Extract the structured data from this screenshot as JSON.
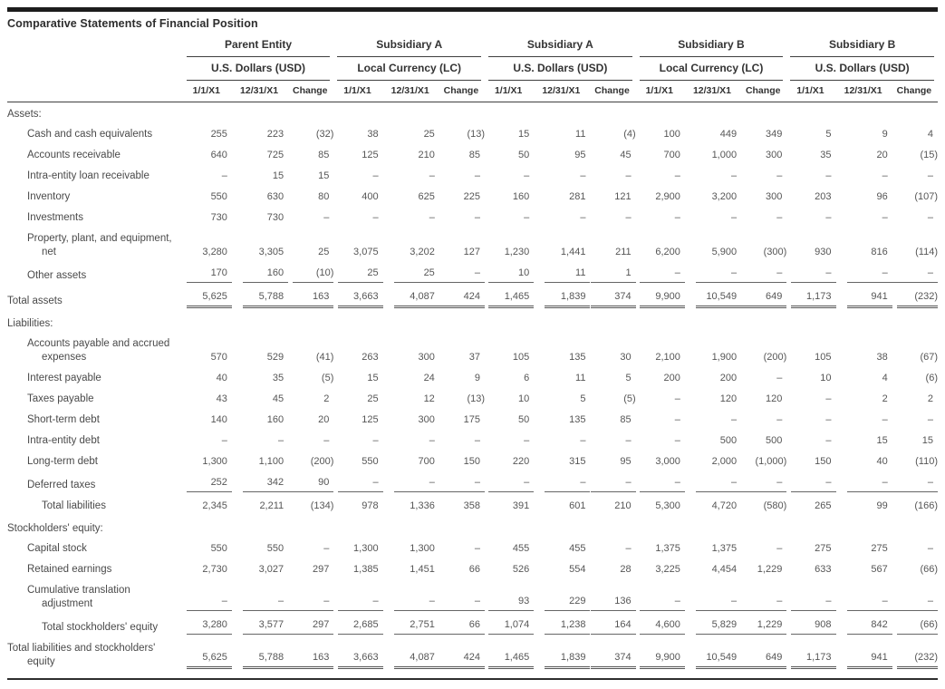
{
  "title": "Comparative Statements of Financial Position",
  "table": {
    "groups": [
      {
        "entity": "Parent Entity",
        "currency": "U.S. Dollars (USD)"
      },
      {
        "entity": "Subsidiary A",
        "currency": "Local Currency (LC)"
      },
      {
        "entity": "Subsidiary A",
        "currency": "U.S. Dollars (USD)"
      },
      {
        "entity": "Subsidiary B",
        "currency": "Local Currency (LC)"
      },
      {
        "entity": "Subsidiary B",
        "currency": "U.S. Dollars (USD)"
      }
    ],
    "col_headers": [
      "1/1/X1",
      "12/31/X1",
      "Change"
    ],
    "rows": [
      {
        "label": "Assets:",
        "type": "section",
        "indent": 0
      },
      {
        "label": "Cash and cash equivalents",
        "type": "item",
        "indent": 1,
        "underline": "none",
        "values": [
          "255",
          "223",
          "(32)",
          "38",
          "25",
          "(13)",
          "15",
          "11",
          "(4)",
          "100",
          "449",
          "349",
          "5",
          "9",
          "4"
        ]
      },
      {
        "label": "Accounts receivable",
        "type": "item",
        "indent": 1,
        "underline": "none",
        "values": [
          "640",
          "725",
          "85",
          "125",
          "210",
          "85",
          "50",
          "95",
          "45",
          "700",
          "1,000",
          "300",
          "35",
          "20",
          "(15)"
        ]
      },
      {
        "label": "Intra-entity loan receivable",
        "type": "item",
        "indent": 1,
        "underline": "none",
        "values": [
          "–",
          "15",
          "15",
          "–",
          "–",
          "–",
          "–",
          "–",
          "–",
          "–",
          "–",
          "–",
          "–",
          "–",
          "–"
        ]
      },
      {
        "label": "Inventory",
        "type": "item",
        "indent": 1,
        "underline": "none",
        "values": [
          "550",
          "630",
          "80",
          "400",
          "625",
          "225",
          "160",
          "281",
          "121",
          "2,900",
          "3,200",
          "300",
          "203",
          "96",
          "(107)"
        ]
      },
      {
        "label": "Investments",
        "type": "item",
        "indent": 1,
        "underline": "none",
        "values": [
          "730",
          "730",
          "–",
          "–",
          "–",
          "–",
          "–",
          "–",
          "–",
          "–",
          "–",
          "–",
          "–",
          "–",
          "–"
        ]
      },
      {
        "label": "Property, plant, and equipment,",
        "label2": "net",
        "type": "item",
        "indent": 1,
        "indent2": 2,
        "underline": "none",
        "values": [
          "3,280",
          "3,305",
          "25",
          "3,075",
          "3,202",
          "127",
          "1,230",
          "1,441",
          "211",
          "6,200",
          "5,900",
          "(300)",
          "930",
          "816",
          "(114)"
        ]
      },
      {
        "label": "Other assets",
        "type": "item",
        "indent": 1,
        "underline": "single",
        "values": [
          "170",
          "160",
          "(10)",
          "25",
          "25",
          "–",
          "10",
          "11",
          "1",
          "–",
          "–",
          "–",
          "–",
          "–",
          "–"
        ]
      },
      {
        "label": "Total assets",
        "type": "total",
        "indent": 0,
        "underline": "double",
        "values": [
          "5,625",
          "5,788",
          "163",
          "3,663",
          "4,087",
          "424",
          "1,465",
          "1,839",
          "374",
          "9,900",
          "10,549",
          "649",
          "1,173",
          "941",
          "(232)"
        ]
      },
      {
        "label": "Liabilities:",
        "type": "section",
        "indent": 0
      },
      {
        "label": "Accounts payable and accrued",
        "label2": "expenses",
        "type": "item",
        "indent": 1,
        "indent2": 2,
        "underline": "none",
        "values": [
          "570",
          "529",
          "(41)",
          "263",
          "300",
          "37",
          "105",
          "135",
          "30",
          "2,100",
          "1,900",
          "(200)",
          "105",
          "38",
          "(67)"
        ]
      },
      {
        "label": "Interest payable",
        "type": "item",
        "indent": 1,
        "underline": "none",
        "values": [
          "40",
          "35",
          "(5)",
          "15",
          "24",
          "9",
          "6",
          "11",
          "5",
          "200",
          "200",
          "–",
          "10",
          "4",
          "(6)"
        ]
      },
      {
        "label": "Taxes payable",
        "type": "item",
        "indent": 1,
        "underline": "none",
        "values": [
          "43",
          "45",
          "2",
          "25",
          "12",
          "(13)",
          "10",
          "5",
          "(5)",
          "–",
          "120",
          "120",
          "–",
          "2",
          "2"
        ]
      },
      {
        "label": "Short-term debt",
        "type": "item",
        "indent": 1,
        "underline": "none",
        "values": [
          "140",
          "160",
          "20",
          "125",
          "300",
          "175",
          "50",
          "135",
          "85",
          "–",
          "–",
          "–",
          "–",
          "–",
          "–"
        ]
      },
      {
        "label": "Intra-entity debt",
        "type": "item",
        "indent": 1,
        "underline": "none",
        "values": [
          "–",
          "–",
          "–",
          "–",
          "–",
          "–",
          "–",
          "–",
          "–",
          "–",
          "500",
          "500",
          "–",
          "15",
          "15"
        ]
      },
      {
        "label": "Long-term debt",
        "type": "item",
        "indent": 1,
        "underline": "none",
        "values": [
          "1,300",
          "1,100",
          "(200)",
          "550",
          "700",
          "150",
          "220",
          "315",
          "95",
          "3,000",
          "2,000",
          "(1,000)",
          "150",
          "40",
          "(110)"
        ]
      },
      {
        "label": "Deferred taxes",
        "type": "item",
        "indent": 1,
        "underline": "single",
        "values": [
          "252",
          "342",
          "90",
          "–",
          "–",
          "–",
          "–",
          "–",
          "–",
          "–",
          "–",
          "–",
          "–",
          "–",
          "–"
        ]
      },
      {
        "label": "Total liabilities",
        "type": "total",
        "indent": 2,
        "underline": "none",
        "values": [
          "2,345",
          "2,211",
          "(134)",
          "978",
          "1,336",
          "358",
          "391",
          "601",
          "210",
          "5,300",
          "4,720",
          "(580)",
          "265",
          "99",
          "(166)"
        ]
      },
      {
        "label": "Stockholders' equity:",
        "type": "section",
        "indent": 0
      },
      {
        "label": "Capital stock",
        "type": "item",
        "indent": 1,
        "underline": "none",
        "values": [
          "550",
          "550",
          "–",
          "1,300",
          "1,300",
          "–",
          "455",
          "455",
          "–",
          "1,375",
          "1,375",
          "–",
          "275",
          "275",
          "–"
        ]
      },
      {
        "label": "Retained earnings",
        "type": "item",
        "indent": 1,
        "underline": "none",
        "values": [
          "2,730",
          "3,027",
          "297",
          "1,385",
          "1,451",
          "66",
          "526",
          "554",
          "28",
          "3,225",
          "4,454",
          "1,229",
          "633",
          "567",
          "(66)"
        ]
      },
      {
        "label": "Cumulative translation",
        "label2": "adjustment",
        "type": "item",
        "indent": 1,
        "indent2": 2,
        "underline": "single",
        "values": [
          "–",
          "–",
          "–",
          "–",
          "–",
          "–",
          "93",
          "229",
          "136",
          "–",
          "–",
          "–",
          "–",
          "–",
          "–"
        ]
      },
      {
        "label": "Total stockholders' equity",
        "type": "total",
        "indent": 2,
        "underline": "single",
        "values": [
          "3,280",
          "3,577",
          "297",
          "2,685",
          "2,751",
          "66",
          "1,074",
          "1,238",
          "164",
          "4,600",
          "5,829",
          "1,229",
          "908",
          "842",
          "(66)"
        ]
      },
      {
        "label": "Total liabilities and stockholders'",
        "label2": "equity",
        "type": "total",
        "indent": 0,
        "indent2": 1,
        "underline": "double",
        "values": [
          "5,625",
          "5,788",
          "163",
          "3,663",
          "4,087",
          "424",
          "1,465",
          "1,839",
          "374",
          "9,900",
          "10,549",
          "649",
          "1,173",
          "941",
          "(232)"
        ]
      }
    ]
  }
}
